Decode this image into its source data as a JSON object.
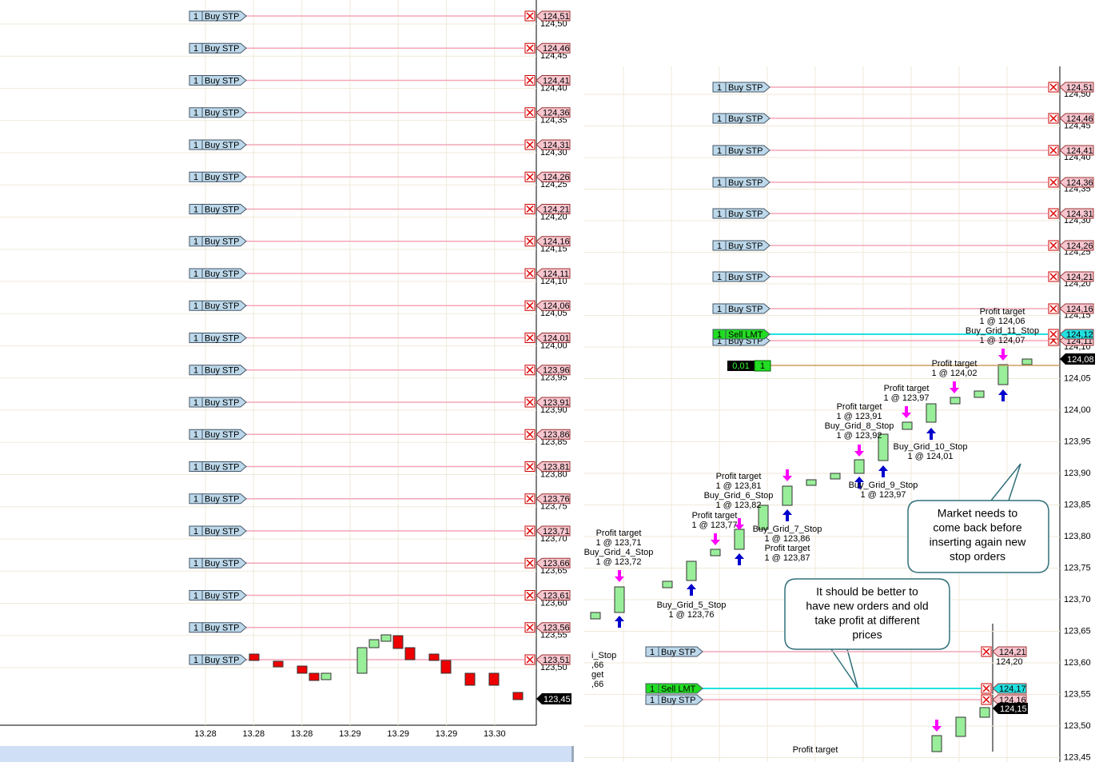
{
  "left_panel": {
    "orders": [
      {
        "qty": "1",
        "type": "Buy STP",
        "price": "124,51"
      },
      {
        "qty": "1",
        "type": "Buy STP",
        "price": "124,46"
      },
      {
        "qty": "1",
        "type": "Buy STP",
        "price": "124,41"
      },
      {
        "qty": "1",
        "type": "Buy STP",
        "price": "124,36"
      },
      {
        "qty": "1",
        "type": "Buy STP",
        "price": "124,31"
      },
      {
        "qty": "1",
        "type": "Buy STP",
        "price": "124,26"
      },
      {
        "qty": "1",
        "type": "Buy STP",
        "price": "124,21"
      },
      {
        "qty": "1",
        "type": "Buy STP",
        "price": "124,16"
      },
      {
        "qty": "1",
        "type": "Buy STP",
        "price": "124,11"
      },
      {
        "qty": "1",
        "type": "Buy STP",
        "price": "124,06"
      },
      {
        "qty": "1",
        "type": "Buy STP",
        "price": "124,01"
      },
      {
        "qty": "1",
        "type": "Buy STP",
        "price": "123,96"
      },
      {
        "qty": "1",
        "type": "Buy STP",
        "price": "123,91"
      },
      {
        "qty": "1",
        "type": "Buy STP",
        "price": "123,86"
      },
      {
        "qty": "1",
        "type": "Buy STP",
        "price": "123,81"
      },
      {
        "qty": "1",
        "type": "Buy STP",
        "price": "123,76"
      },
      {
        "qty": "1",
        "type": "Buy STP",
        "price": "123,71"
      },
      {
        "qty": "1",
        "type": "Buy STP",
        "price": "123,66"
      },
      {
        "qty": "1",
        "type": "Buy STP",
        "price": "123,61"
      },
      {
        "qty": "1",
        "type": "Buy STP",
        "price": "123,56"
      },
      {
        "qty": "1",
        "type": "Buy STP",
        "price": "123,51"
      }
    ],
    "price_axis": [
      "124,50",
      "124,45",
      "124,40",
      "124,35",
      "124,30",
      "124,25",
      "124,20",
      "124,15",
      "124,10",
      "124,05",
      "124,00",
      "123,95",
      "123,90",
      "123,85",
      "123,80",
      "123,75",
      "123,70",
      "123,65",
      "123,60",
      "123,55",
      "123,50"
    ],
    "last_price": "123,45",
    "time_axis": [
      "13.28",
      "13.28",
      "13.28",
      "13.29",
      "13.29",
      "13.29",
      "13.30"
    ]
  },
  "right_panel": {
    "orders": [
      {
        "qty": "1",
        "type": "Buy STP",
        "price": "124,51"
      },
      {
        "qty": "1",
        "type": "Buy STP",
        "price": "124,46"
      },
      {
        "qty": "1",
        "type": "Buy STP",
        "price": "124,41"
      },
      {
        "qty": "1",
        "type": "Buy STP",
        "price": "124,36"
      },
      {
        "qty": "1",
        "type": "Buy STP",
        "price": "124,31"
      },
      {
        "qty": "1",
        "type": "Buy STP",
        "price": "124,26"
      },
      {
        "qty": "1",
        "type": "Buy STP",
        "price": "124,21"
      },
      {
        "qty": "1",
        "type": "Buy STP",
        "price": "124,16"
      }
    ],
    "sell_order": {
      "qty": "1",
      "type": "Sell LMT",
      "price": "124,12"
    },
    "buy_order": {
      "qty": "1",
      "type": "Buy STP",
      "price": "124,11"
    },
    "position": {
      "pnl": "0,01",
      "qty": "1"
    },
    "last_price": "124,08",
    "price_axis": [
      "124,50",
      "124,45",
      "124,40",
      "124,35",
      "124,30",
      "124,25",
      "124,20",
      "124,15",
      "124,10",
      "124,05",
      "124,00",
      "123,95",
      "123,90",
      "123,85",
      "123,80",
      "123,75",
      "123,70",
      "123,65",
      "123,60",
      "123,55",
      "123,50",
      "123,45"
    ],
    "annotations": [
      [
        "Profit target",
        "1 @ 123,71",
        "Buy_Grid_4_Stop",
        "1 @ 123,72"
      ],
      [
        "Buy_Grid_5_Stop",
        "1 @ 123,76"
      ],
      [
        "Profit target",
        "1 @ 123,77"
      ],
      [
        "Profit target",
        "1 @ 123,81",
        "Buy_Grid_6_Stop",
        "1 @ 123,82"
      ],
      [
        "Buy_Grid_7_Stop",
        "1 @ 123,86",
        "Profit target",
        "1 @ 123,87"
      ],
      [
        "Profit target",
        "1 @ 123,91",
        "Buy_Grid_8_Stop",
        "1 @ 123,92"
      ],
      [
        "Buy_Grid_9_Stop",
        "1 @ 123,97"
      ],
      [
        "Profit target",
        "1 @ 123,97"
      ],
      [
        "Buy_Grid_10_Stop",
        "1 @ 124,01"
      ],
      [
        "Profit target",
        "1 @ 124,02"
      ],
      [
        "Profit target",
        "1 @ 124,06",
        "Buy_Grid_11_Stop",
        "1 @ 124,07"
      ],
      [
        "Profit target"
      ],
      [
        "i_Stop",
        ",66",
        "get",
        ",66"
      ]
    ],
    "callouts": [
      [
        "Market needs to",
        "come back before",
        "inserting again new",
        "stop orders"
      ],
      [
        "It should be better to",
        "have new orders and old",
        "take profit at different",
        "prices"
      ]
    ]
  },
  "inset_panel": {
    "buy_order_1": {
      "qty": "1",
      "type": "Buy STP",
      "price": "124,21"
    },
    "price_axis": [
      "124,20"
    ],
    "sell_order": {
      "qty": "1",
      "type": "Sell LMT",
      "price": "124,17"
    },
    "buy_order_2": {
      "qty": "1",
      "type": "Buy STP",
      "price": "124,16"
    },
    "last_price": "124,15"
  }
}
